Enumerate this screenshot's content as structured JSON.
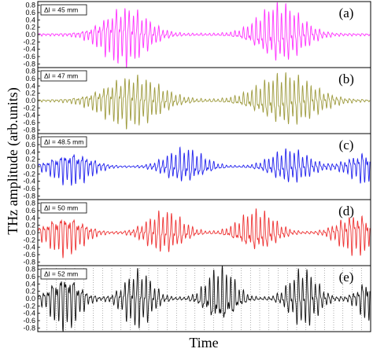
{
  "chart_data": {
    "type": "line",
    "ylabel": "THz amplitude (arb.units)",
    "xlabel": "Time",
    "ylim": [
      -0.9,
      0.9
    ],
    "yticks": [
      "0.8",
      "0.6",
      "0.4",
      "0.2",
      "0.0",
      "-0.2",
      "-0.4",
      "-0.6",
      "-0.8"
    ],
    "panels": [
      {
        "label": "(a)",
        "delta_l": "Δl = 45 mm",
        "color": "#ff33ff",
        "peak_amplitude": 0.78,
        "envelope_centers": [
          0.26,
          0.73
        ],
        "envelope_width": 0.085
      },
      {
        "label": "(b)",
        "delta_l": "Δl = 47 mm",
        "color": "#9e9b3e",
        "peak_amplitude": 0.68,
        "envelope_centers": [
          0.28,
          0.75
        ],
        "envelope_width": 0.11
      },
      {
        "label": "(c)",
        "delta_l": "Δl = 48.5 mm",
        "color": "#2222ee",
        "peak_amplitude": 0.45,
        "envelope_centers": [
          0.1,
          0.44,
          0.76,
          1.0
        ],
        "envelope_width": 0.075
      },
      {
        "label": "(d)",
        "delta_l": "Δl = 50 mm",
        "color": "#ee3333",
        "peak_amplitude": 0.55,
        "envelope_centers": [
          0.08,
          0.38,
          0.66,
          0.96
        ],
        "envelope_width": 0.07
      },
      {
        "label": "(e)",
        "delta_l": "Δl = 52 mm",
        "color": "#111111",
        "peak_amplitude": 0.78,
        "envelope_centers": [
          0.08,
          0.3,
          0.55,
          0.8,
          1.02
        ],
        "envelope_width": 0.055,
        "dotted_gridlines": true
      }
    ]
  }
}
